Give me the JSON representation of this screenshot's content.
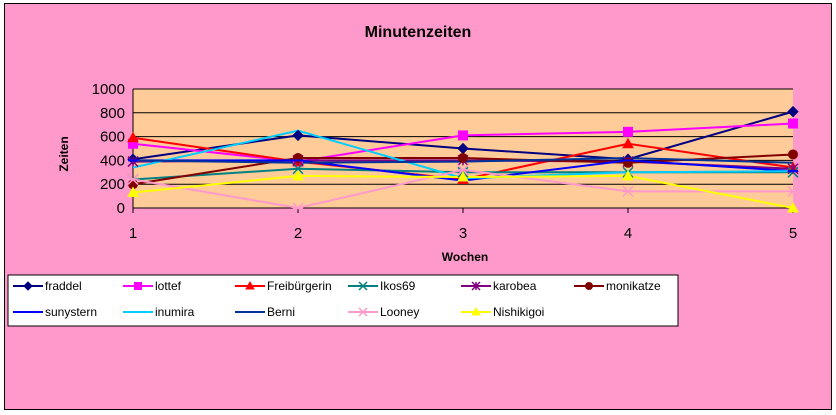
{
  "chart_data": {
    "type": "line",
    "title": "Minutenzeiten",
    "xlabel": "Wochen",
    "ylabel": "Zeiten",
    "x": [
      1,
      2,
      3,
      4,
      5
    ],
    "ylim": [
      0,
      1000
    ],
    "yticks": [
      0,
      200,
      400,
      600,
      800,
      1000
    ],
    "grid": true,
    "legend_position": "bottom",
    "series": [
      {
        "name": "fraddel",
        "color": "#000080",
        "marker": "diamond",
        "values": [
          410,
          610,
          500,
          410,
          810
        ]
      },
      {
        "name": "lottef",
        "color": "#ff00ff",
        "marker": "square",
        "values": [
          540,
          390,
          610,
          640,
          710
        ]
      },
      {
        "name": "Freibürgerin",
        "color": "#ff0000",
        "marker": "triangle",
        "values": [
          590,
          390,
          240,
          540,
          340
        ]
      },
      {
        "name": "Ikos69",
        "color": "#008080",
        "marker": "x",
        "values": [
          240,
          330,
          300,
          300,
          300
        ]
      },
      {
        "name": "karobea",
        "color": "#800080",
        "marker": "star",
        "values": [
          390,
          400,
          400,
          390,
          330
        ]
      },
      {
        "name": "monikatze",
        "color": "#800000",
        "marker": "circle",
        "values": [
          200,
          420,
          420,
          380,
          450
        ]
      },
      {
        "name": "sunystern",
        "color": "#0000ff",
        "marker": "plus",
        "values": [
          400,
          400,
          230,
          400,
          310
        ]
      },
      {
        "name": "inumira",
        "color": "#00ccff",
        "marker": "none",
        "values": [
          340,
          650,
          250,
          300,
          310
        ]
      },
      {
        "name": "Berni",
        "color": "#003399",
        "marker": "none",
        "values": [
          400,
          380,
          390,
          420,
          380
        ]
      },
      {
        "name": "Looney",
        "color": "#ff99cc",
        "marker": "asterisk",
        "values": [
          240,
          0,
          320,
          140,
          140
        ]
      },
      {
        "name": "Nishikigoi",
        "color": "#ffff00",
        "marker": "triangle",
        "values": [
          130,
          270,
          260,
          270,
          0
        ]
      }
    ]
  },
  "colors": {
    "background": "#ff99cc",
    "plot_area": "#ffcc99",
    "gridline": "#000000"
  }
}
